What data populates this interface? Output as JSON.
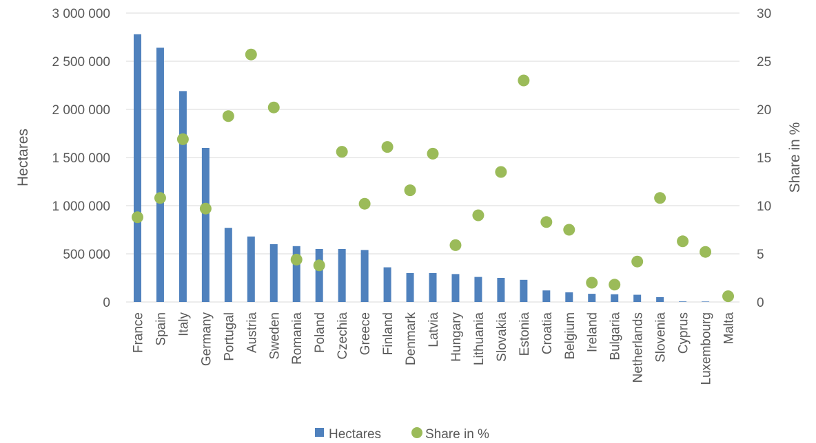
{
  "chart_data": {
    "type": "bar",
    "categories": [
      "France",
      "Spain",
      "Italy",
      "Germany",
      "Portugal",
      "Austria",
      "Sweden",
      "Romania",
      "Poland",
      "Czechia",
      "Greece",
      "Finland",
      "Denmark",
      "Latvia",
      "Hungary",
      "Lithuania",
      "Slovakia",
      "Estonia",
      "Croatia",
      "Belgium",
      "Ireland",
      "Bulgaria",
      "Netherlands",
      "Slovenia",
      "Cyprus",
      "Luxembourg",
      "Malta"
    ],
    "series": [
      {
        "name": "Hectares",
        "type": "bar",
        "axis": "left",
        "color": "#4f81bd",
        "values": [
          2780000,
          2640000,
          2190000,
          1600000,
          770000,
          680000,
          600000,
          580000,
          550000,
          550000,
          540000,
          360000,
          300000,
          300000,
          290000,
          260000,
          250000,
          230000,
          120000,
          100000,
          85000,
          80000,
          75000,
          50000,
          6000,
          5000,
          0
        ]
      },
      {
        "name": "Share in %",
        "type": "scatter",
        "axis": "right",
        "color": "#9bbb59",
        "values": [
          8.8,
          10.8,
          16.9,
          9.7,
          19.3,
          25.7,
          20.2,
          4.4,
          3.8,
          15.6,
          10.2,
          16.1,
          11.6,
          15.4,
          5.9,
          9.0,
          13.5,
          23.0,
          8.3,
          7.5,
          2.0,
          1.8,
          4.2,
          10.8,
          6.3,
          5.2,
          0.6
        ]
      }
    ],
    "ylabel": "Hectares",
    "y2label": "Share in %",
    "ylim": [
      0,
      3000000
    ],
    "y2lim": [
      0,
      30
    ],
    "yticks": [
      "0",
      "500 000",
      "1 000 000",
      "1 500 000",
      "2 000 000",
      "2 500 000",
      "3 000 000"
    ],
    "y2ticks": [
      "0",
      "5",
      "10",
      "15",
      "20",
      "25",
      "30"
    ],
    "grid": true,
    "legend": "bottom-center"
  }
}
